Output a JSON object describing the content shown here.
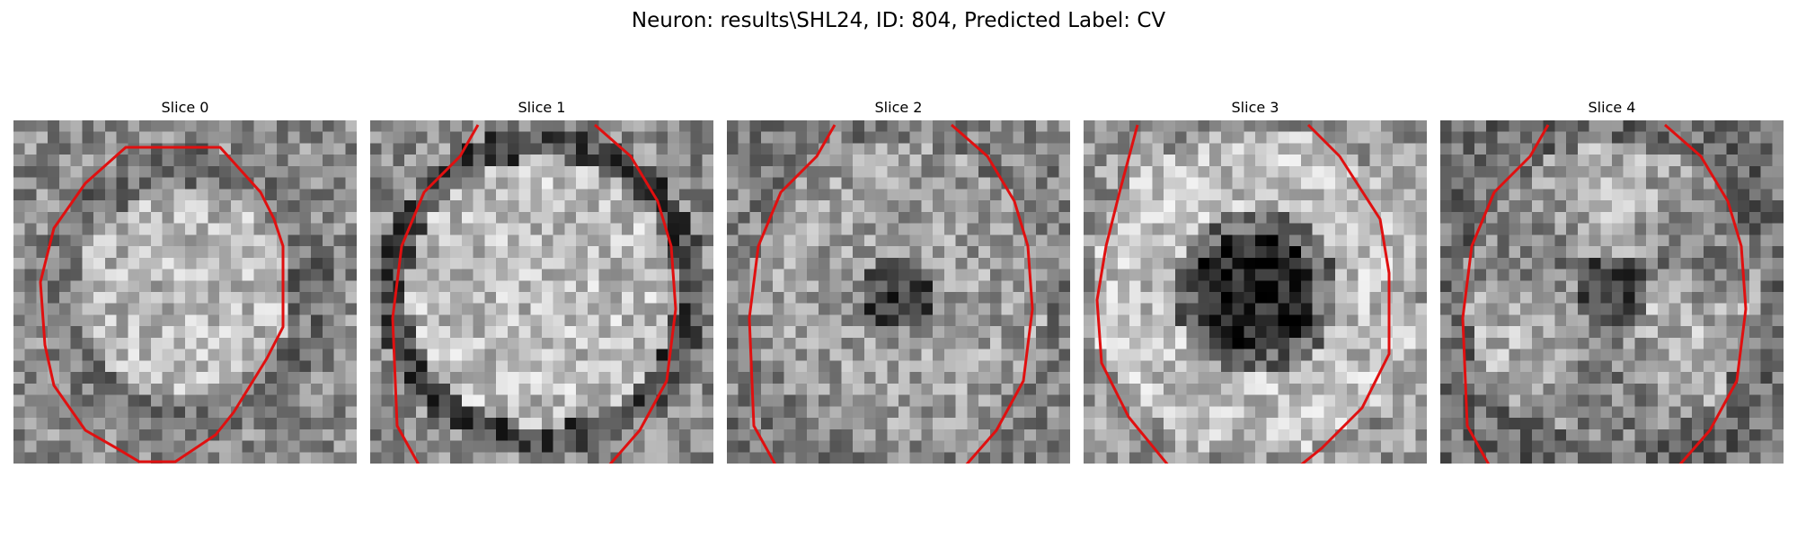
{
  "figure": {
    "title": "Neuron: results\\SHL24, ID: 804, Predicted Label: CV"
  },
  "panels": [
    {
      "label": "Slice 0",
      "pattern": "bright-filled",
      "outline": "closed",
      "seed": 11
    },
    {
      "label": "Slice 1",
      "pattern": "bright-with-dark-rim",
      "outline": "open-bottom",
      "seed": 23
    },
    {
      "label": "Slice 2",
      "pattern": "ring-with-small-dark-core",
      "outline": "open-bottom",
      "seed": 37
    },
    {
      "label": "Slice 3",
      "pattern": "ring-with-large-dark-core",
      "outline": "open-top-bottom",
      "seed": 49
    },
    {
      "label": "Slice 4",
      "pattern": "mixed-ring",
      "outline": "open-bottom",
      "seed": 61
    }
  ],
  "colors": {
    "outline": "#e01010",
    "background": "#ffffff"
  }
}
